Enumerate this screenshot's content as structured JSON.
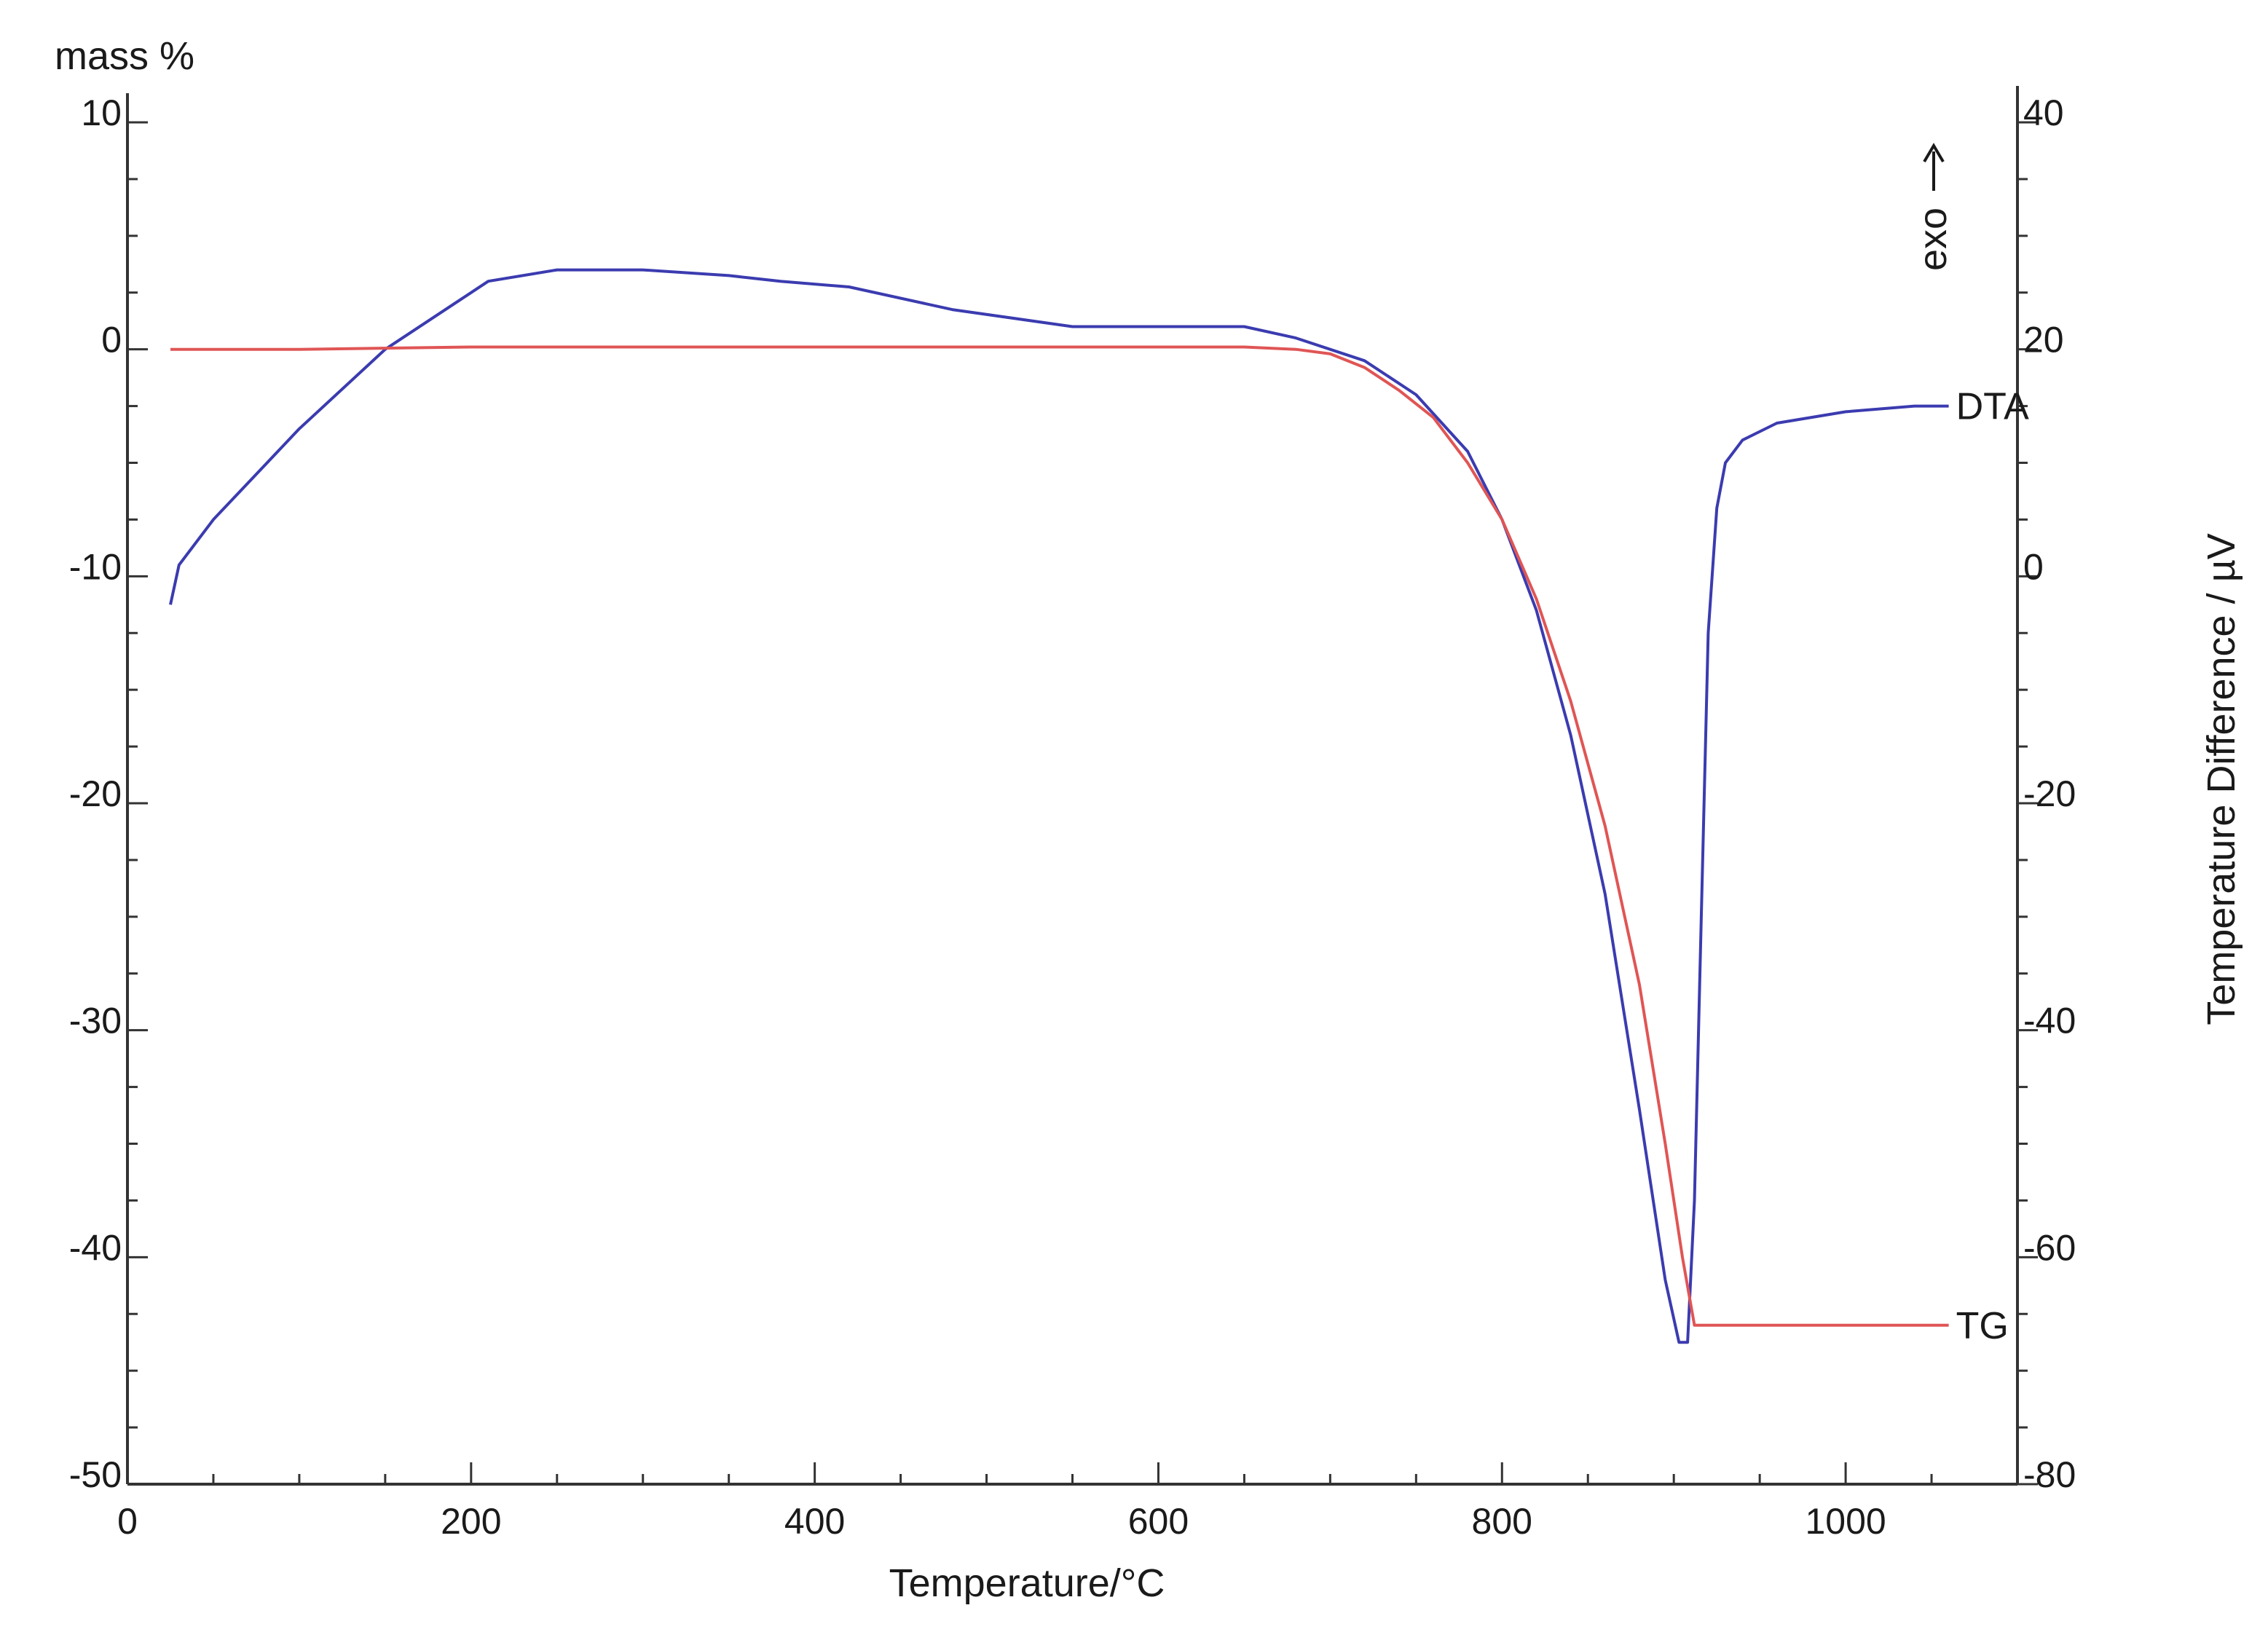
{
  "chart_data": {
    "type": "line",
    "title": "",
    "xlabel": "Temperature/°C",
    "ylabel_left": "mass %",
    "ylabel_right": "Temperature Difference / µV",
    "annotation": "exo",
    "xlim": [
      0,
      1100
    ],
    "ylim_left": [
      -50,
      10
    ],
    "ylim_right": [
      -80,
      40
    ],
    "x_ticks": [
      0,
      200,
      400,
      600,
      800,
      1000
    ],
    "x_tick_labels": [
      "0",
      "200",
      "400",
      "600",
      "800",
      "1000"
    ],
    "y_left_ticks": [
      10,
      0,
      -10,
      -20,
      -30,
      -40,
      -50
    ],
    "y_left_tick_labels": [
      "10",
      "0",
      "-10",
      "-20",
      "-30",
      "-40",
      "-50"
    ],
    "y_right_ticks": [
      40,
      20,
      0,
      -20,
      -40,
      -60,
      -80
    ],
    "y_right_tick_labels": [
      "40",
      "20",
      "0",
      "-20",
      "-40",
      "-60",
      "-80"
    ],
    "grid": false,
    "series": [
      {
        "name": "DTA",
        "axis": "right",
        "color": "#3b3bb0",
        "x": [
          25,
          30,
          50,
          100,
          150,
          200,
          210,
          250,
          300,
          350,
          380,
          420,
          480,
          550,
          600,
          650,
          680,
          720,
          750,
          780,
          800,
          820,
          840,
          860,
          880,
          895,
          903,
          908,
          912,
          916,
          920,
          925,
          930,
          940,
          960,
          1000,
          1040,
          1060
        ],
        "y": [
          -2.5,
          1,
          5,
          13,
          20,
          25,
          26,
          27,
          27,
          26.5,
          26,
          25.5,
          23.5,
          22,
          22,
          22,
          21,
          19,
          16,
          11,
          5,
          -3,
          -14,
          -28,
          -47,
          -62,
          -67.5,
          -67.5,
          -55,
          -30,
          -5,
          6,
          10,
          12,
          13.5,
          14.5,
          15,
          15
        ]
      },
      {
        "name": "TG",
        "axis": "left",
        "color": "#e05555",
        "x": [
          25,
          100,
          200,
          300,
          400,
          500,
          600,
          650,
          680,
          700,
          720,
          740,
          760,
          780,
          800,
          820,
          840,
          860,
          880,
          895,
          905,
          912,
          915,
          1000,
          1060
        ],
        "y": [
          0,
          0,
          0.1,
          0.1,
          0.1,
          0.1,
          0.1,
          0.1,
          0,
          -0.2,
          -0.8,
          -1.8,
          -3,
          -5,
          -7.5,
          -11,
          -15.5,
          -21,
          -28,
          -35,
          -40,
          -43,
          -43,
          -43,
          -43
        ]
      }
    ]
  }
}
